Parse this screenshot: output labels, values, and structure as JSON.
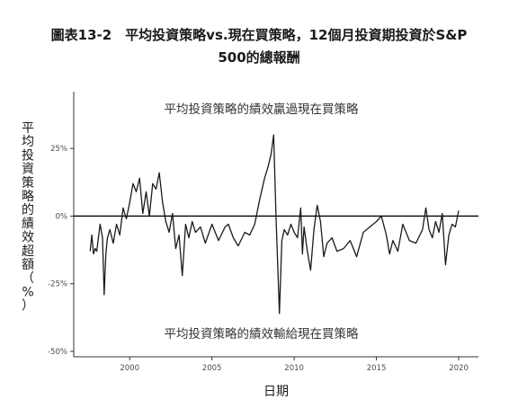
{
  "title_line1": "圖表13-2　平均投資策略vs.現在買策略，12個月投資期投資於S&P",
  "title_line2": "500的總報酬",
  "chart_data": {
    "type": "line",
    "xlabel": "日期",
    "ylabel": "平均投資策略的績效超額（%）",
    "xlim": [
      1996.6,
      2021.2
    ],
    "ylim": [
      -52,
      46
    ],
    "x_ticks": [
      2000,
      2005,
      2010,
      2015,
      2020
    ],
    "x_tick_labels": [
      "2000",
      "2005",
      "2010",
      "2015",
      "2020"
    ],
    "y_ticks": [
      25,
      0,
      -25,
      -50
    ],
    "y_tick_labels": [
      "25%",
      "0%",
      "-25%",
      "-50%"
    ],
    "zero_line": 0,
    "grid": false,
    "annotations": [
      {
        "text": "平均投資策略的績效贏過現在買策略",
        "x": 2008.0,
        "y": 38
      },
      {
        "text": "平均投資策略的績效輸給現在買策略",
        "x": 2008.0,
        "y": -45
      }
    ],
    "series": [
      {
        "line_color": "#1a1a1a",
        "x": [
          1997.6,
          1997.7,
          1997.8,
          1997.9,
          1998.0,
          1998.2,
          1998.35,
          1998.45,
          1998.55,
          1998.65,
          1998.8,
          1999.0,
          1999.2,
          1999.4,
          1999.6,
          1999.8,
          2000.0,
          2000.2,
          2000.4,
          2000.6,
          2000.8,
          2001.0,
          2001.2,
          2001.4,
          2001.6,
          2001.8,
          2002.0,
          2002.2,
          2002.4,
          2002.6,
          2002.8,
          2003.0,
          2003.2,
          2003.4,
          2003.6,
          2003.8,
          2004.0,
          2004.3,
          2004.6,
          2005.0,
          2005.4,
          2005.8,
          2006.0,
          2006.3,
          2006.6,
          2007.0,
          2007.3,
          2007.6,
          2007.9,
          2008.2,
          2008.4,
          2008.6,
          2008.75,
          2008.9,
          2009.0,
          2009.1,
          2009.25,
          2009.4,
          2009.6,
          2009.8,
          2010.0,
          2010.2,
          2010.4,
          2010.5,
          2010.6,
          2010.8,
          2011.0,
          2011.2,
          2011.4,
          2011.6,
          2011.8,
          2012.0,
          2012.3,
          2012.6,
          2013.0,
          2013.4,
          2013.8,
          2014.2,
          2014.6,
          2015.0,
          2015.3,
          2015.6,
          2015.8,
          2016.0,
          2016.3,
          2016.6,
          2017.0,
          2017.4,
          2017.8,
          2018.0,
          2018.2,
          2018.4,
          2018.6,
          2018.8,
          2019.0,
          2019.2,
          2019.4,
          2019.6,
          2019.8,
          2020.0
        ],
        "y": [
          -13,
          -7,
          -14,
          -12,
          -13,
          -3,
          -8,
          -29,
          -14,
          -8,
          -5,
          -10,
          -3,
          -7,
          3,
          -1,
          5,
          12,
          9,
          14,
          1,
          9,
          0,
          12,
          10,
          16,
          5,
          -2,
          -6,
          1,
          -12,
          -7,
          -22,
          -3,
          -8,
          -2,
          -6,
          -4,
          -10,
          -3,
          -9,
          -4,
          -3,
          -8,
          -11,
          -6,
          -7,
          -3,
          6,
          14,
          18,
          23,
          30,
          -1,
          -18,
          -36,
          -9,
          -5,
          -7,
          -3,
          -6,
          -8,
          3,
          -14,
          -4,
          -13,
          -20,
          -5,
          4,
          -2,
          -15,
          -10,
          -8,
          -13,
          -12,
          -9,
          -15,
          -6,
          -4,
          -2,
          0,
          -7,
          -14,
          -9,
          -13,
          -3,
          -9,
          -10,
          -5,
          3,
          -5,
          -8,
          -2,
          -6,
          1,
          -18,
          -7,
          -3,
          -4,
          2
        ]
      }
    ]
  }
}
